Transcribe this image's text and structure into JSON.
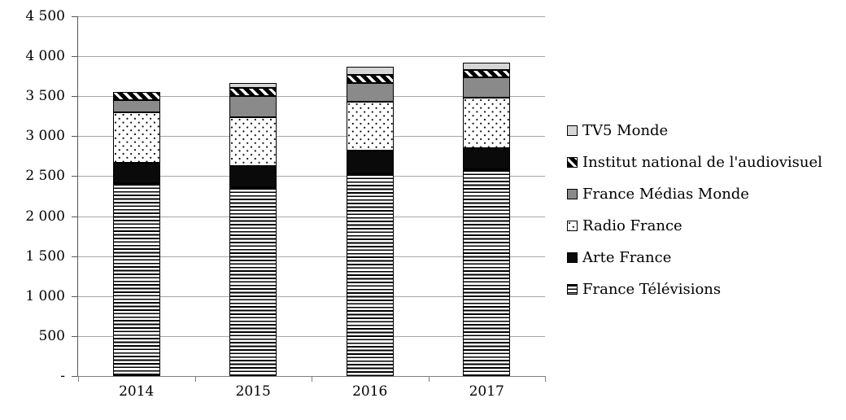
{
  "chart_data": {
    "type": "bar",
    "stacked": true,
    "title": "",
    "xlabel": "",
    "ylabel": "",
    "categories": [
      "2014",
      "2015",
      "2016",
      "2017"
    ],
    "series": [
      {
        "key": "ftv",
        "name": "France Télévisions",
        "pattern": "horizontal-lines",
        "values": [
          2415,
          2365,
          2540,
          2585
        ]
      },
      {
        "key": "arte",
        "name": "Arte France",
        "pattern": "solid-black",
        "values": [
          255,
          260,
          280,
          270
        ]
      },
      {
        "key": "rf",
        "name": "Radio France",
        "pattern": "dots",
        "values": [
          630,
          610,
          610,
          625
        ]
      },
      {
        "key": "fmm",
        "name": "France Médias Monde",
        "pattern": "solid-gray",
        "values": [
          155,
          265,
          235,
          260
        ]
      },
      {
        "key": "ina",
        "name": "Institut national de l'audiovisuel",
        "pattern": "diagonal-stripes",
        "values": [
          95,
          105,
          100,
          90
        ]
      },
      {
        "key": "tv5",
        "name": "TV5 Monde",
        "pattern": "solid-lightgray",
        "values": [
          0,
          60,
          100,
          90
        ]
      }
    ],
    "totals": [
      3550,
      3665,
      3865,
      3920
    ],
    "y_axis": {
      "min": 0,
      "max": 4500,
      "step": 500,
      "tick_labels": [
        "4 500",
        "4 000",
        "3 500",
        "3 000",
        "2 500",
        "2 000",
        "1 500",
        "1 000",
        "500",
        "-"
      ]
    },
    "grid": true,
    "legend_position": "right",
    "legend_order_top_to_bottom": [
      "tv5",
      "ina",
      "fmm",
      "rf",
      "arte",
      "ftv"
    ],
    "colors": {
      "bar_outline": "#000000",
      "solid_black": "#0a0a0a",
      "solid_gray": "#8a8a8a",
      "solid_lightgray": "#d6d6d6",
      "pattern_ink": "#000000",
      "pattern_paper": "#ffffff",
      "gridline": "#a6a6a6",
      "axis": "#808080",
      "text": "#000000"
    }
  }
}
